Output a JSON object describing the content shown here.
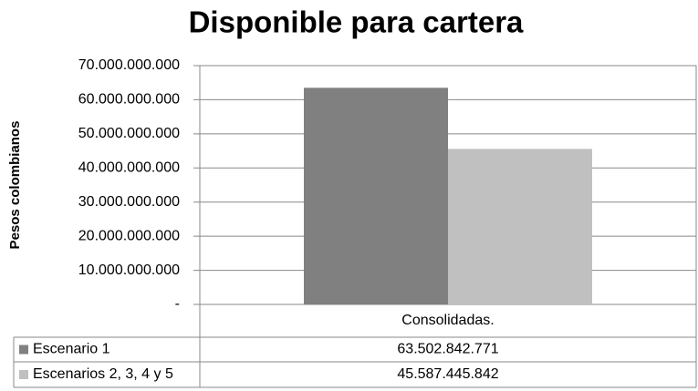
{
  "chart_data": {
    "type": "bar",
    "title": "Disponible para cartera",
    "y_label": "Pesos colombianos",
    "categories": [
      "Consolidadas."
    ],
    "series": [
      {
        "name": "Escenario 1",
        "color": "#808080",
        "values": [
          63502842771
        ],
        "value_labels": [
          "63.502.842.771"
        ]
      },
      {
        "name": "Escenarios 2, 3, 4 y 5",
        "color": "#c0c0c0",
        "values": [
          45587445842
        ],
        "value_labels": [
          "45.587.445.842"
        ]
      }
    ],
    "ylim": [
      0,
      70000000000
    ],
    "yticks": [
      {
        "value": 0,
        "label": "-"
      },
      {
        "value": 10000000000,
        "label": "10.000.000.000"
      },
      {
        "value": 20000000000,
        "label": "20.000.000.000"
      },
      {
        "value": 30000000000,
        "label": "30.000.000.000"
      },
      {
        "value": 40000000000,
        "label": "40.000.000.000"
      },
      {
        "value": 50000000000,
        "label": "50.000.000.000"
      },
      {
        "value": 60000000000,
        "label": "60.000.000.000"
      },
      {
        "value": 70000000000,
        "label": "70.000.000.000"
      }
    ],
    "grid": true,
    "data_table": true
  }
}
